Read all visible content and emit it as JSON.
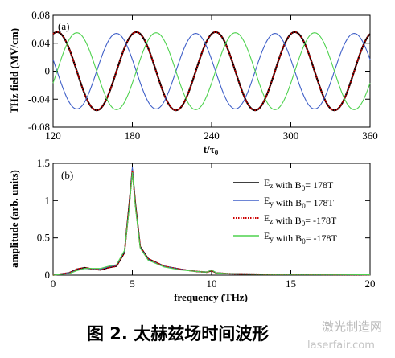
{
  "chart_data": [
    {
      "type": "line",
      "panel_label": "(a)",
      "xlabel": "t/τ",
      "xlabel_sub": "0",
      "ylabel": "THz field (MV/cm)",
      "xlim": [
        120,
        360
      ],
      "ylim": [
        -0.08,
        0.08
      ],
      "xticks": [
        "120",
        "180",
        "240",
        "300",
        "360"
      ],
      "yticks": [
        "0.08",
        "0.04",
        "0",
        "-0.04",
        "-0.08"
      ],
      "series": [
        {
          "color": "#000000",
          "dash": "solid",
          "amplitude": 0.056,
          "period": 60,
          "peak_t": [
            183,
            242,
            301
          ]
        },
        {
          "color": "#cc0000",
          "dash": "dotted",
          "amplitude": 0.056,
          "period": 60,
          "peak_t": [
            183,
            242,
            301
          ]
        },
        {
          "color": "#3f5fc8",
          "dash": "solid",
          "amplitude": 0.054,
          "period": 60,
          "peak_t": [
            168,
            228,
            288,
            348
          ]
        },
        {
          "color": "#4ed24e",
          "dash": "solid",
          "amplitude": 0.055,
          "period": 60,
          "peak_t": [
            138,
            198,
            258,
            318
          ]
        }
      ]
    },
    {
      "type": "line",
      "panel_label": "(b)",
      "xlabel": "frequency (THz)",
      "ylabel": "amplitude (arb. units)",
      "xlim": [
        0,
        20
      ],
      "ylim": [
        0,
        1.5
      ],
      "xticks": [
        "0",
        "5",
        "10",
        "15",
        "20"
      ],
      "yticks": [
        "1.5",
        "1",
        "0.5",
        "0"
      ],
      "legend_position": "upper-right",
      "series": [
        {
          "name": "E",
          "name_sub": "z",
          "name_tail": " with B",
          "name_tail_sub": "0",
          "name_end": "=  178T",
          "color": "#000000",
          "dash": "solid",
          "x": [
            0,
            1,
            1.5,
            2,
            2.5,
            3,
            3.5,
            4,
            4.5,
            4.8,
            5,
            5.2,
            5.5,
            6,
            7,
            8,
            9,
            9.7,
            10,
            10.3,
            11,
            12,
            14,
            16,
            18,
            20
          ],
          "y": [
            0,
            0.03,
            0.08,
            0.1,
            0.08,
            0.07,
            0.1,
            0.12,
            0.3,
            0.95,
            1.42,
            0.95,
            0.38,
            0.22,
            0.12,
            0.08,
            0.05,
            0.04,
            0.06,
            0.03,
            0.02,
            0.015,
            0.01,
            0.01,
            0.008,
            0.005
          ]
        },
        {
          "name": "E",
          "name_sub": "y",
          "name_tail": " with B",
          "name_tail_sub": "0",
          "name_end": "=  178T",
          "color": "#3f5fc8",
          "dash": "solid",
          "x": [
            0,
            1,
            1.5,
            2,
            2.5,
            3,
            3.5,
            4,
            4.5,
            4.8,
            5,
            5.2,
            5.5,
            6,
            7,
            8,
            9,
            9.7,
            10,
            10.3,
            11,
            12,
            14,
            16,
            18,
            20
          ],
          "y": [
            0,
            0.03,
            0.07,
            0.09,
            0.08,
            0.08,
            0.11,
            0.13,
            0.32,
            0.9,
            1.45,
            0.92,
            0.37,
            0.21,
            0.12,
            0.08,
            0.05,
            0.04,
            0.07,
            0.03,
            0.02,
            0.015,
            0.01,
            0.01,
            0.008,
            0.005
          ]
        },
        {
          "name": "E",
          "name_sub": "z",
          "name_tail": " with B",
          "name_tail_sub": "0",
          "name_end": "= -178T",
          "color": "#cc0000",
          "dash": "dotted",
          "x": [
            0,
            1,
            1.5,
            2,
            2.5,
            3,
            3.5,
            4,
            4.5,
            4.8,
            5,
            5.2,
            5.5,
            6,
            7,
            8,
            9,
            9.7,
            10,
            10.3,
            11,
            12,
            14,
            16,
            18,
            20
          ],
          "y": [
            0,
            0.03,
            0.08,
            0.1,
            0.08,
            0.07,
            0.1,
            0.12,
            0.3,
            0.93,
            1.4,
            0.93,
            0.38,
            0.22,
            0.12,
            0.08,
            0.05,
            0.04,
            0.06,
            0.03,
            0.02,
            0.015,
            0.01,
            0.01,
            0.008,
            0.005
          ]
        },
        {
          "name": "E",
          "name_sub": "y",
          "name_tail": " with B",
          "name_tail_sub": "0",
          "name_end": "= -178T",
          "color": "#4ed24e",
          "dash": "solid",
          "x": [
            0,
            1,
            1.5,
            2,
            2.5,
            3,
            3.5,
            4,
            4.5,
            4.8,
            5,
            5.2,
            5.5,
            6,
            7,
            8,
            9,
            9.7,
            10,
            10.3,
            11,
            12,
            14,
            16,
            18,
            20
          ],
          "y": [
            0,
            0.02,
            0.06,
            0.09,
            0.09,
            0.09,
            0.12,
            0.14,
            0.33,
            0.88,
            1.38,
            0.9,
            0.36,
            0.2,
            0.11,
            0.07,
            0.05,
            0.04,
            0.07,
            0.03,
            0.02,
            0.015,
            0.01,
            0.01,
            0.008,
            0.005
          ]
        }
      ]
    }
  ],
  "caption": "图 2.  太赫兹场时间波形",
  "watermark": {
    "cn": "激光制造网",
    "url": "laserfair.com"
  }
}
